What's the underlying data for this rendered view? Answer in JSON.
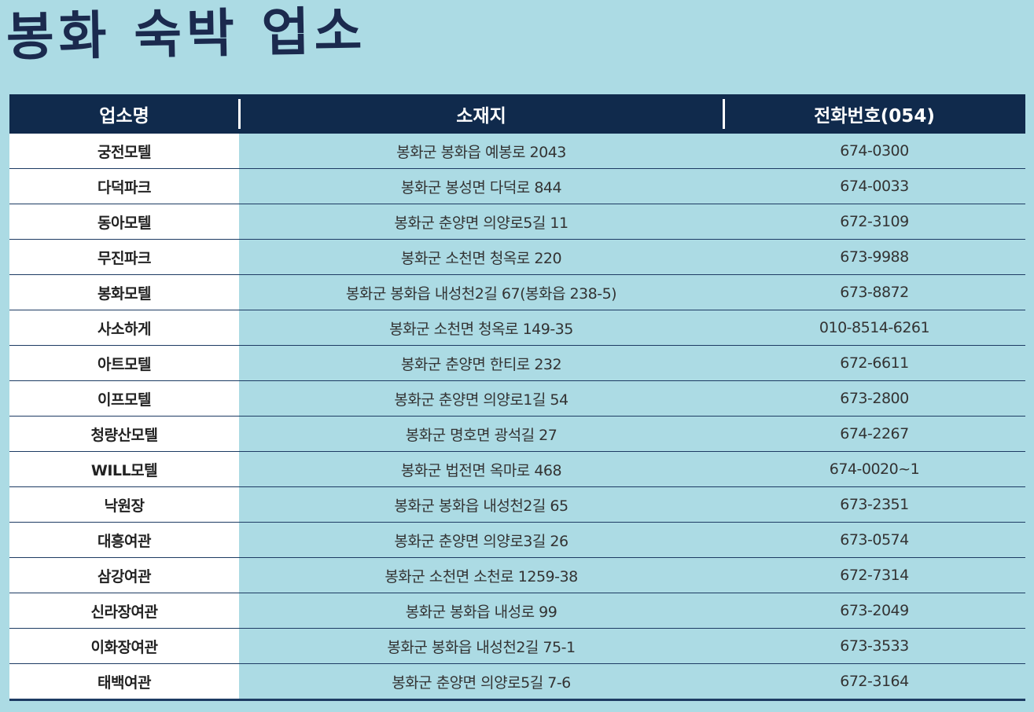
{
  "title": "봉화 숙박 업소",
  "columns": {
    "name": "업소명",
    "address": "소재지",
    "phone": "전화번호(054)"
  },
  "colors": {
    "header_bg": "#102a4c",
    "page_bg": "#acdbe4",
    "title_color": "#1b2a4e"
  },
  "rows": [
    {
      "name": "궁전모텔",
      "address": "봉화군 봉화읍 예봉로 2043",
      "phone": "674-0300"
    },
    {
      "name": "다덕파크",
      "address": "봉화군 봉성면 다덕로 844",
      "phone": "674-0033"
    },
    {
      "name": "동아모텔",
      "address": "봉화군 춘양면 의양로5길 11",
      "phone": "672-3109"
    },
    {
      "name": "무진파크",
      "address": "봉화군 소천면 청옥로 220",
      "phone": "673-9988"
    },
    {
      "name": "봉화모텔",
      "address": "봉화군 봉화읍 내성천2길 67(봉화읍 238-5)",
      "phone": "673-8872"
    },
    {
      "name": "사소하게",
      "address": "봉화군 소천면 청옥로 149-35",
      "phone": "010-8514-6261"
    },
    {
      "name": "아트모텔",
      "address": "봉화군 춘양면 한티로 232",
      "phone": "672-6611"
    },
    {
      "name": "이프모텔",
      "address": "봉화군 춘양면 의양로1길 54",
      "phone": "673-2800"
    },
    {
      "name": "청량산모텔",
      "address": "봉화군 명호면 광석길 27",
      "phone": "674-2267"
    },
    {
      "name": "WILL모텔",
      "address": "봉화군 법전면 옥마로 468",
      "phone": "674-0020~1"
    },
    {
      "name": "낙원장",
      "address": "봉화군 봉화읍 내성천2길 65",
      "phone": "673-2351"
    },
    {
      "name": "대흥여관",
      "address": "봉화군 춘양면 의양로3길 26",
      "phone": "673-0574"
    },
    {
      "name": "삼강여관",
      "address": "봉화군 소천면 소천로 1259-38",
      "phone": "672-7314"
    },
    {
      "name": "신라장여관",
      "address": "봉화군 봉화읍 내성로 99",
      "phone": "673-2049"
    },
    {
      "name": "이화장여관",
      "address": "봉화군 봉화읍 내성천2길 75-1",
      "phone": "673-3533"
    },
    {
      "name": "태백여관",
      "address": "봉화군 춘양면 의양로5길 7-6",
      "phone": "672-3164"
    }
  ]
}
